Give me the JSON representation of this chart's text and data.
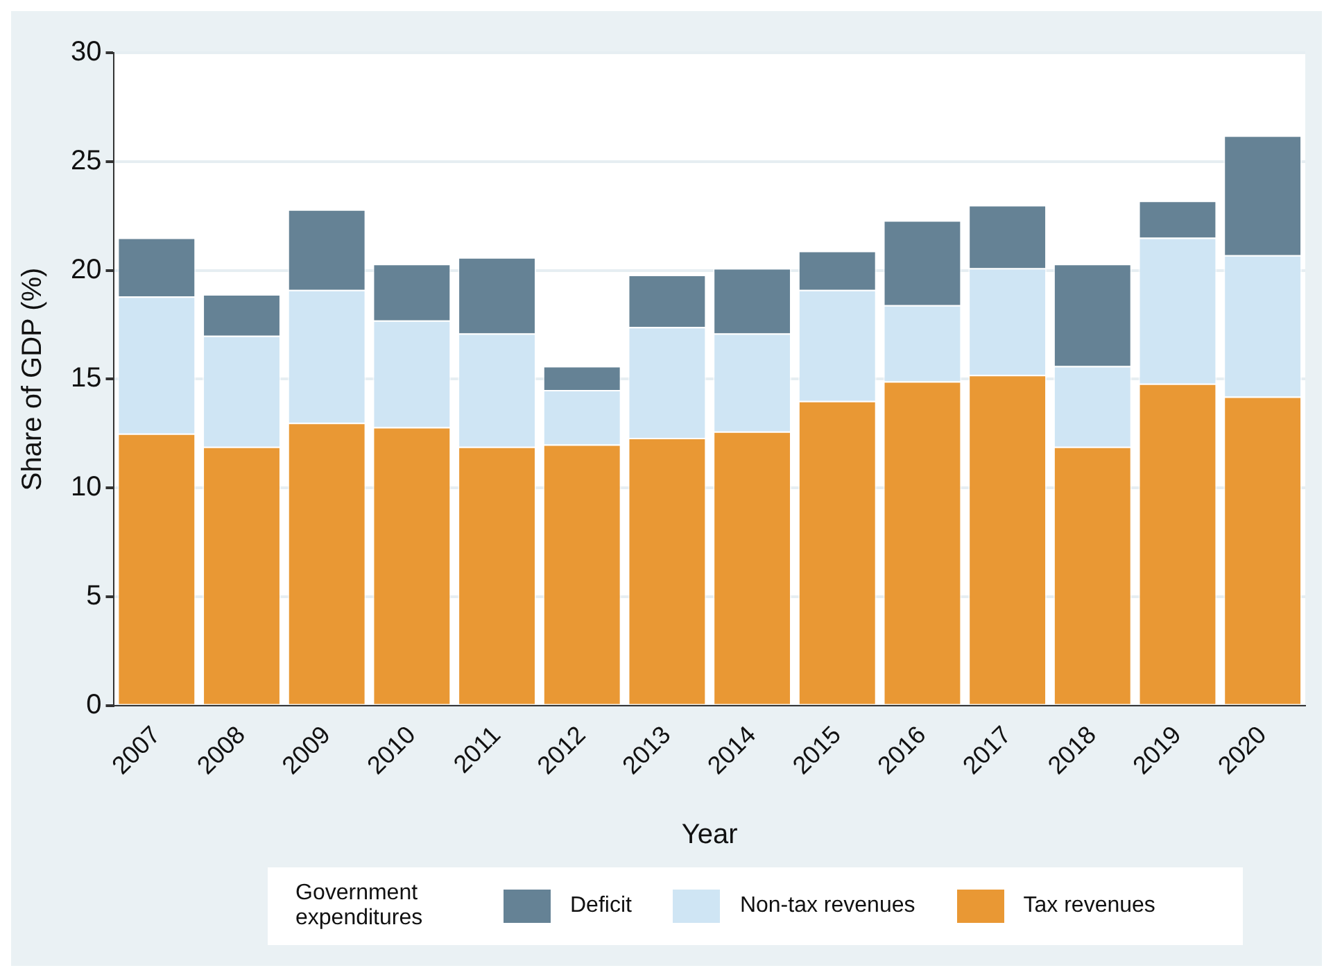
{
  "chart_data": {
    "type": "bar",
    "stacked": true,
    "xlabel": "Year",
    "ylabel": "Share of GDP (%)",
    "legend_title": "Government expenditures",
    "legend": "bottom",
    "grid": "y",
    "categories": [
      "2007",
      "2008",
      "2009",
      "2010",
      "2011",
      "2012",
      "2013",
      "2014",
      "2015",
      "2016",
      "2017",
      "2018",
      "2019",
      "2020"
    ],
    "ylim": [
      0,
      30
    ],
    "yticks": [
      0,
      5,
      10,
      15,
      20,
      25,
      30
    ],
    "series": [
      {
        "name": "Tax revenues",
        "color": "#e99834",
        "values": [
          12.5,
          11.9,
          13.0,
          12.8,
          11.9,
          12.0,
          12.3,
          12.6,
          14.0,
          14.9,
          15.2,
          11.9,
          14.8,
          14.2
        ]
      },
      {
        "name": "Non-tax revenues",
        "color": "#cfe5f4",
        "values": [
          6.3,
          5.1,
          6.1,
          4.9,
          5.2,
          2.5,
          5.1,
          4.5,
          5.1,
          3.5,
          4.9,
          3.7,
          6.7,
          6.5
        ]
      },
      {
        "name": "Deficit",
        "color": "#658295",
        "values": [
          2.7,
          1.9,
          3.7,
          2.6,
          3.5,
          1.1,
          2.4,
          3.0,
          1.8,
          3.9,
          2.9,
          4.7,
          1.7,
          5.5
        ]
      }
    ]
  }
}
